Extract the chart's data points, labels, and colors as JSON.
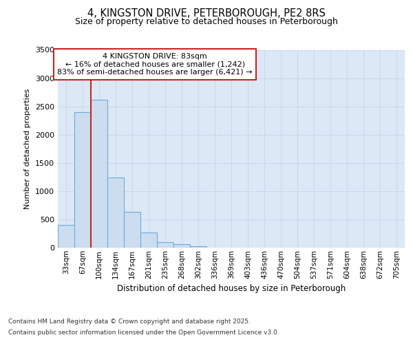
{
  "title_line1": "4, KINGSTON DRIVE, PETERBOROUGH, PE2 8RS",
  "title_line2": "Size of property relative to detached houses in Peterborough",
  "xlabel": "Distribution of detached houses by size in Peterborough",
  "ylabel": "Number of detached properties",
  "categories": [
    "33sqm",
    "67sqm",
    "100sqm",
    "134sqm",
    "167sqm",
    "201sqm",
    "235sqm",
    "268sqm",
    "302sqm",
    "336sqm",
    "369sqm",
    "403sqm",
    "436sqm",
    "470sqm",
    "504sqm",
    "537sqm",
    "571sqm",
    "604sqm",
    "638sqm",
    "672sqm",
    "705sqm"
  ],
  "values": [
    400,
    2400,
    2620,
    1240,
    630,
    270,
    100,
    55,
    20,
    0,
    0,
    0,
    0,
    0,
    0,
    0,
    0,
    0,
    0,
    0,
    0
  ],
  "bar_color": "#ccddf0",
  "bar_edge_color": "#6aabdd",
  "vline_color": "#cc2222",
  "annotation_text": "4 KINGSTON DRIVE: 83sqm\n← 16% of detached houses are smaller (1,242)\n83% of semi-detached houses are larger (6,421) →",
  "annotation_box_facecolor": "#ffffff",
  "annotation_border_color": "#cc2222",
  "ylim": [
    0,
    3500
  ],
  "yticks": [
    0,
    500,
    1000,
    1500,
    2000,
    2500,
    3000,
    3500
  ],
  "grid_color": "#c8d4e8",
  "background_color": "#dce8f5",
  "footer_line1": "Contains HM Land Registry data © Crown copyright and database right 2025.",
  "footer_line2": "Contains public sector information licensed under the Open Government Licence v3.0."
}
